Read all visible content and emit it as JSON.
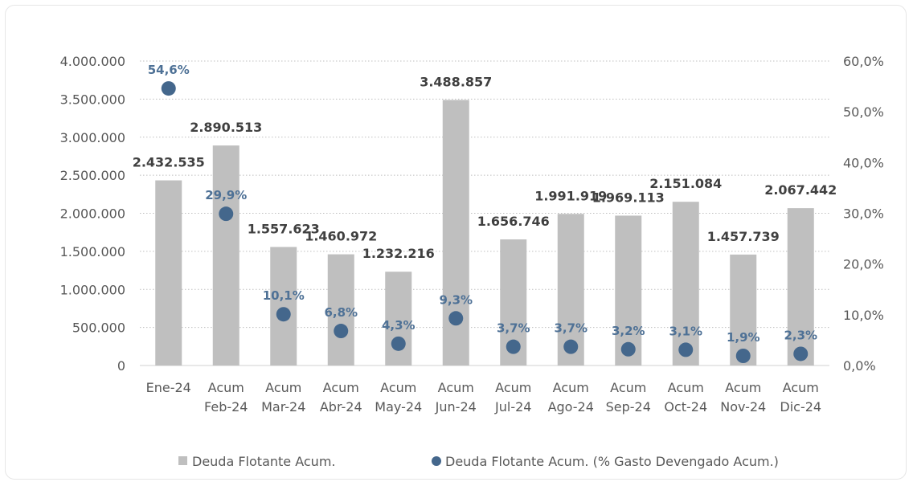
{
  "chart_data": {
    "type": "bar",
    "categories": [
      [
        "Ene-24"
      ],
      [
        "Acum",
        "Feb-24"
      ],
      [
        "Acum",
        "Mar-24"
      ],
      [
        "Acum",
        "Abr-24"
      ],
      [
        "Acum",
        "May-24"
      ],
      [
        "Acum",
        "Jun-24"
      ],
      [
        "Acum",
        "Jul-24"
      ],
      [
        "Acum",
        "Ago-24"
      ],
      [
        "Acum",
        "Sep-24"
      ],
      [
        "Acum",
        "Oct-24"
      ],
      [
        "Acum",
        "Nov-24"
      ],
      [
        "Acum",
        "Dic-24"
      ]
    ],
    "series": [
      {
        "name": "Deuda Flotante Acum.",
        "type": "bar",
        "axis": "left",
        "color": "#bfbfbf",
        "values": [
          2432535,
          2890513,
          1557623,
          1460972,
          1232216,
          3488857,
          1656746,
          1991919,
          1969113,
          2151084,
          1457739,
          2067442
        ],
        "labels": [
          "2.432.535",
          "2.890.513",
          "1.557.623",
          "1.460.972",
          "1.232.216",
          "3.488.857",
          "1.656.746",
          "1.991.919",
          "1.969.113",
          "2.151.084",
          "1.457.739",
          "2.067.442"
        ]
      },
      {
        "name": "Deuda Flotante Acum. (% Gasto Devengado Acum.)",
        "type": "scatter",
        "axis": "right",
        "color": "#44678c",
        "values": [
          54.6,
          29.9,
          10.1,
          6.8,
          4.3,
          9.3,
          3.7,
          3.7,
          3.2,
          3.1,
          1.9,
          2.3
        ],
        "labels": [
          "54,6%",
          "29,9%",
          "10,1%",
          "6,8%",
          "4,3%",
          "9,3%",
          "3,7%",
          "3,7%",
          "3,2%",
          "3,1%",
          "1,9%",
          "2,3%"
        ]
      }
    ],
    "y_left": {
      "lim": [
        0,
        4000000
      ],
      "ticks": [
        0,
        500000,
        1000000,
        1500000,
        2000000,
        2500000,
        3000000,
        3500000,
        4000000
      ],
      "tick_labels": [
        "0",
        "500.000",
        "1.000.000",
        "1.500.000",
        "2.000.000",
        "2.500.000",
        "3.000.000",
        "3.500.000",
        "4.000.000"
      ]
    },
    "y_right": {
      "lim": [
        0,
        60
      ],
      "ticks": [
        0,
        10,
        20,
        30,
        40,
        50,
        60
      ],
      "tick_labels": [
        "0,0%",
        "10,0%",
        "20,0%",
        "30,0%",
        "40,0%",
        "50,0%",
        "60,0%"
      ]
    },
    "grid": "horizontal-dotted",
    "legend": "bottom-center"
  }
}
